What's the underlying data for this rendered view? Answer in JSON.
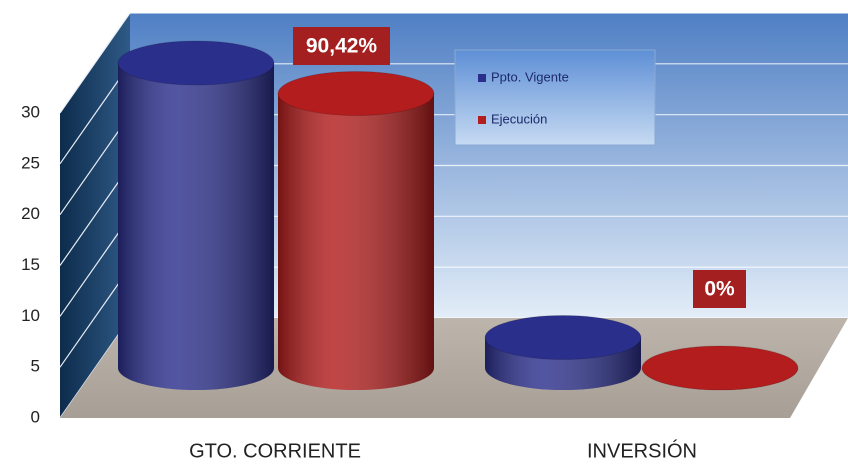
{
  "chart_data": {
    "type": "bar",
    "categories": [
      "GTO. CORRIENTE",
      "INVERSIÓN"
    ],
    "series": [
      {
        "name": "Ppto. Vigente",
        "color": "#2b2f8c",
        "values": [
          30,
          3
        ]
      },
      {
        "name": "Ejecución",
        "color": "#b31d1d",
        "values": [
          27,
          0
        ]
      }
    ],
    "annotations": [
      "90,42%",
      "0%"
    ],
    "ylim": [
      0,
      30
    ],
    "yticks": [
      0,
      5,
      10,
      15,
      20,
      25,
      30
    ],
    "grid": true
  }
}
